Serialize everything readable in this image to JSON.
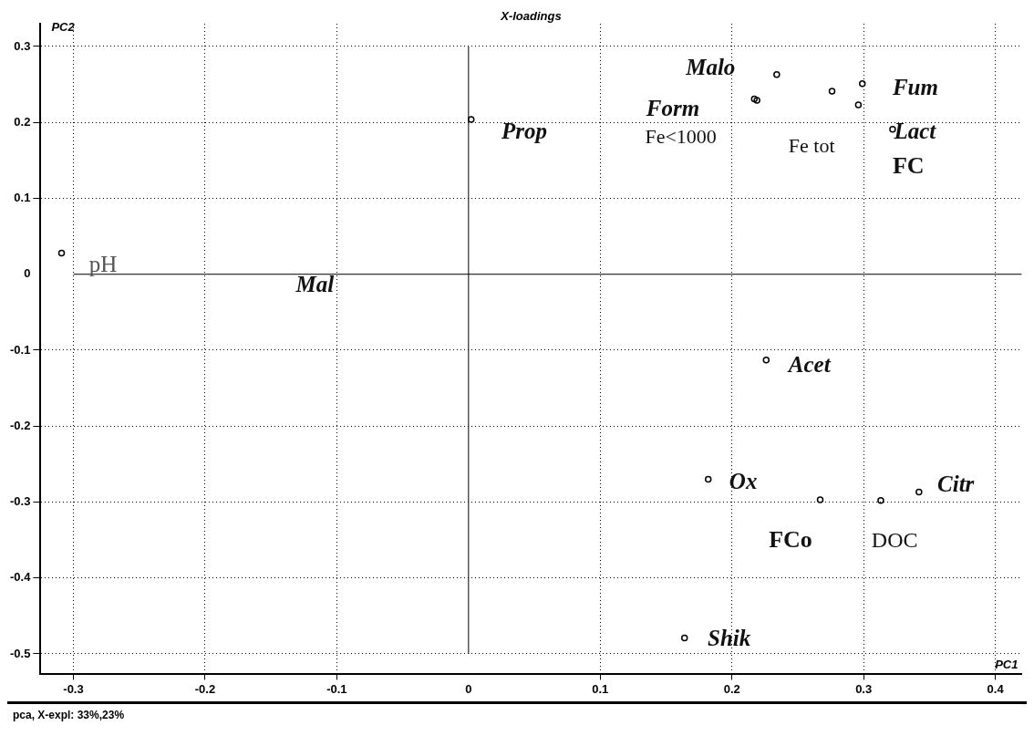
{
  "chart_data": {
    "type": "scatter",
    "title": "X-loadings",
    "xlabel": "PC1",
    "ylabel": "PC2",
    "x": [
      -0.309,
      0.002,
      0.234,
      0.217,
      0.219,
      0.276,
      0.299,
      0.296,
      0.322,
      0.226,
      0.182,
      0.267,
      0.313,
      0.342,
      0.164
    ],
    "series": [
      {
        "color": "#000000",
        "values": [
          0.028,
          0.204,
          0.263,
          0.231,
          0.229,
          0.241,
          0.251,
          0.223,
          0.191,
          -0.113,
          -0.27,
          -0.297,
          -0.298,
          -0.287,
          -0.479
        ]
      }
    ],
    "xlim": [
      -0.325,
      0.42
    ],
    "ylim": [
      -0.527,
      0.33
    ],
    "xticks": [
      -0.3,
      -0.2,
      -0.1,
      0,
      0.1,
      0.2,
      0.3,
      0.4
    ],
    "yticks": [
      -0.5,
      -0.4,
      -0.3,
      -0.2,
      -0.1,
      0,
      0.1,
      0.2,
      0.3
    ],
    "grid": true,
    "marker": "circle",
    "annotations": [
      "pH",
      "Prop",
      "Malo",
      "Form",
      "Fe<1000",
      "Fe tot",
      "Fum",
      "Lact",
      "FC",
      "Mal",
      "Acet",
      "Ox",
      "Citr",
      "FCo",
      "DOC",
      "Shik",
      "pca, X-expl: 33%,23%"
    ]
  }
}
